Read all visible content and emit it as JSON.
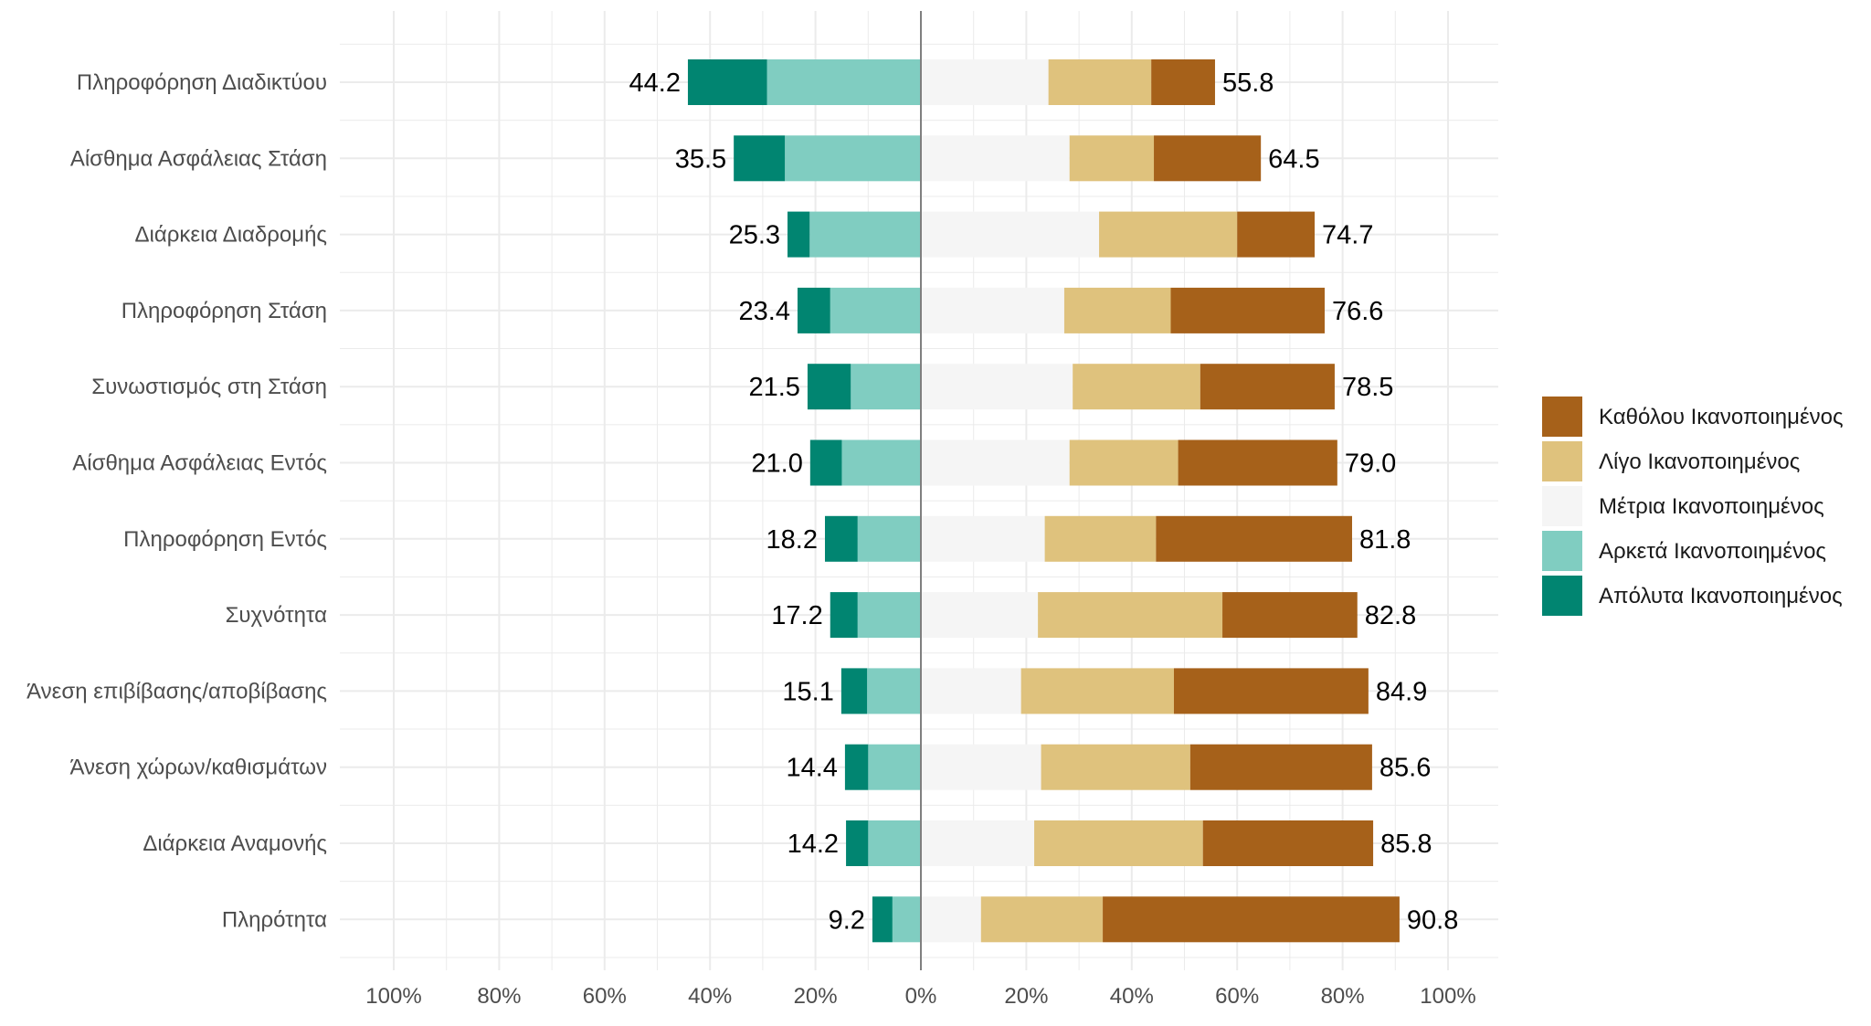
{
  "chart_data": {
    "type": "bar",
    "orientation": "horizontal",
    "stacked": "diverging",
    "title": "",
    "xlabel": "",
    "ylabel": "",
    "xlim": [
      -100,
      100
    ],
    "x_ticks": [
      -100,
      -80,
      -60,
      -40,
      -20,
      0,
      20,
      40,
      60,
      80,
      100
    ],
    "x_tick_labels": [
      "100%",
      "80%",
      "60%",
      "40%",
      "20%",
      "0%",
      "20%",
      "40%",
      "60%",
      "80%",
      "100%"
    ],
    "grid": true,
    "legend_position": "right",
    "categories": [
      "Πληροφόρηση Διαδικτύου",
      "Αίσθημα Ασφάλειας Στάση",
      "Διάρκεια Διαδρομής",
      "Πληροφόρηση Στάση",
      "Συνωστισμός στη Στάση",
      "Αίσθημα Ασφάλειας Εντός",
      "Πληροφόρηση Εντός",
      "Συχνότητα",
      "Άνεση επιβίβασης/αποβίβασης",
      "Άνεση χώρων/καθισμάτων",
      "Διάρκεια Αναμονής",
      "Πληρότητα"
    ],
    "series": [
      {
        "name": "Απόλυτα Ικανοποιημένος",
        "color": "#018571",
        "side": "left",
        "values": [
          15.0,
          9.7,
          4.2,
          6.2,
          8.2,
          6.0,
          6.2,
          5.2,
          4.9,
          4.4,
          4.2,
          3.8
        ]
      },
      {
        "name": "Αρκετά Ικανοποιημένος",
        "color": "#80cdc1",
        "side": "left",
        "values": [
          29.2,
          25.8,
          21.1,
          17.2,
          13.3,
          15.0,
          12.0,
          12.0,
          10.2,
          10.0,
          10.0,
          5.4
        ]
      },
      {
        "name": "Μέτρια Ικανοποιημένος",
        "color": "#f5f5f5",
        "side": "right",
        "values": [
          24.2,
          28.2,
          33.8,
          27.2,
          28.8,
          28.2,
          23.5,
          22.2,
          19.0,
          22.8,
          21.5,
          11.4
        ]
      },
      {
        "name": "Λίγο Ικανοποιημένος",
        "color": "#dfc27d",
        "side": "right",
        "values": [
          19.5,
          16.0,
          26.2,
          20.2,
          24.2,
          20.6,
          21.1,
          35.0,
          29.0,
          28.3,
          32.0,
          23.1
        ]
      },
      {
        "name": "Καθόλου Ικανοποιημένος",
        "color": "#a6611a",
        "side": "right",
        "values": [
          12.1,
          20.3,
          14.7,
          29.2,
          25.5,
          30.2,
          37.2,
          25.6,
          36.9,
          34.5,
          32.3,
          56.3
        ]
      }
    ],
    "left_totals": [
      44.2,
      35.5,
      25.3,
      23.4,
      21.5,
      21.0,
      18.2,
      17.2,
      15.1,
      14.4,
      14.2,
      9.2
    ],
    "right_totals": [
      55.8,
      64.5,
      74.7,
      76.6,
      78.5,
      79.0,
      81.8,
      82.8,
      84.9,
      85.6,
      85.8,
      90.8
    ],
    "left_total_labels": [
      "44.2",
      "35.5",
      "25.3",
      "23.4",
      "21.5",
      "21.0",
      "18.2",
      "17.2",
      "15.1",
      "14.4",
      "14.2",
      "9.2"
    ],
    "right_total_labels": [
      "55.8",
      "64.5",
      "74.7",
      "76.6",
      "78.5",
      "79.0",
      "81.8",
      "82.8",
      "84.9",
      "85.6",
      "85.8",
      "90.8"
    ],
    "legend_order": [
      "Καθόλου Ικανοποιημένος",
      "Λίγο Ικανοποιημένος",
      "Μέτρια Ικανοποιημένος",
      "Αρκετά Ικανοποιημένος",
      "Απόλυτα Ικανοποιημένος"
    ],
    "colors": {
      "grid": "#ebebeb",
      "zero_line": "#7f7f7f"
    }
  }
}
